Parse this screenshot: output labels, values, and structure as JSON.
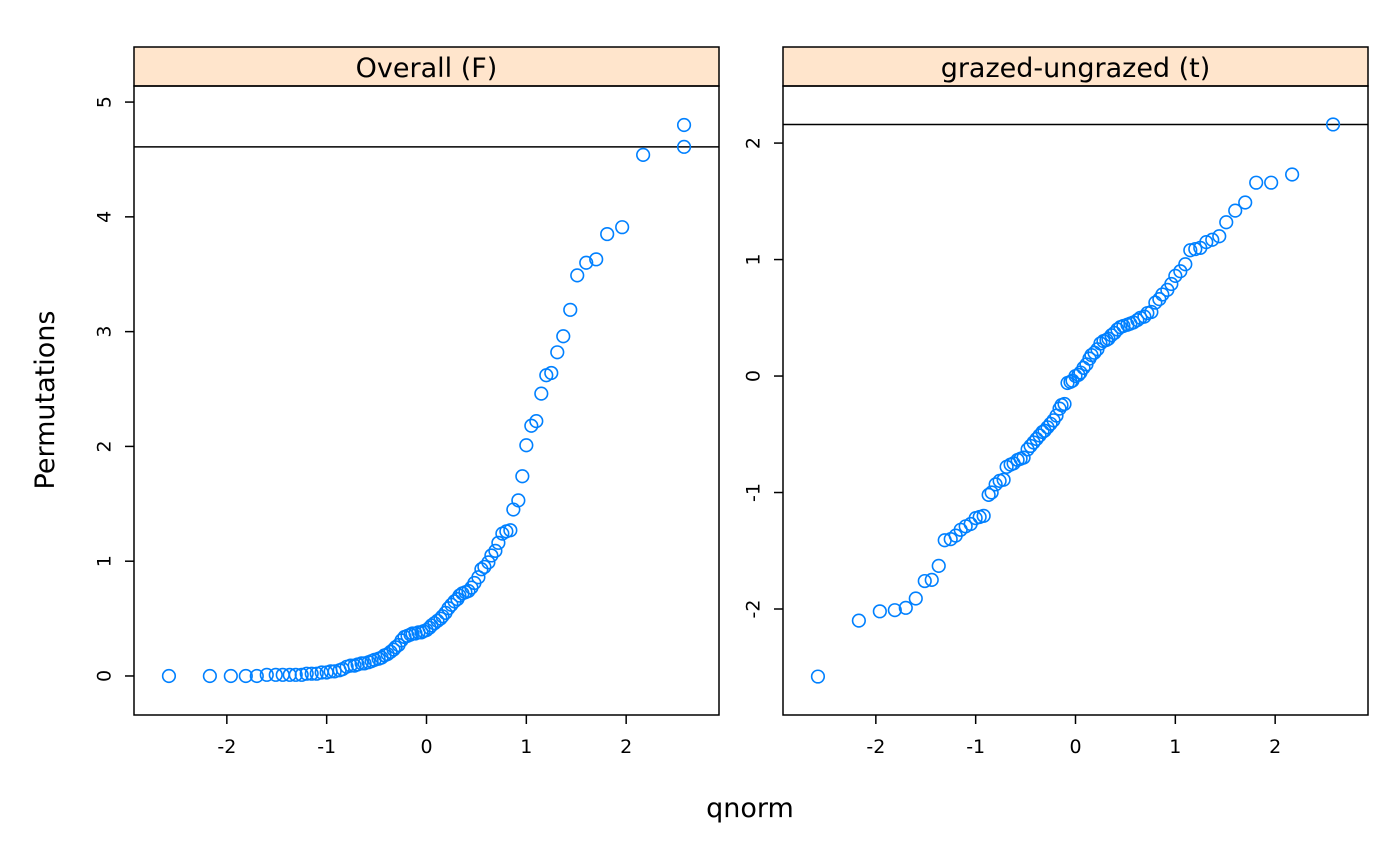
{
  "chart_data": {
    "type": "scatter",
    "xlabel": "qnorm",
    "ylabel": "Permutations",
    "panels": [
      {
        "strip": "Overall (F)",
        "xlim": [
          -2.93,
          2.93
        ],
        "ylim": [
          -0.34,
          5.14
        ],
        "xticks": [
          -2,
          -1,
          0,
          1,
          2
        ],
        "yticks": [
          0,
          1,
          2,
          3,
          4,
          5
        ],
        "reference_line": 4.61,
        "points": [
          [
            -2.58,
            0.0
          ],
          [
            -2.17,
            0.0
          ],
          [
            -1.96,
            0.0
          ],
          [
            -1.81,
            0.0
          ],
          [
            -1.7,
            0.0
          ],
          [
            -1.6,
            0.01
          ],
          [
            -1.51,
            0.01
          ],
          [
            -1.44,
            0.01
          ],
          [
            -1.37,
            0.01
          ],
          [
            -1.31,
            0.01
          ],
          [
            -1.25,
            0.01
          ],
          [
            -1.2,
            0.02
          ],
          [
            -1.15,
            0.02
          ],
          [
            -1.1,
            0.02
          ],
          [
            -1.05,
            0.03
          ],
          [
            -1.0,
            0.03
          ],
          [
            -0.96,
            0.04
          ],
          [
            -0.92,
            0.04
          ],
          [
            -0.87,
            0.05
          ],
          [
            -0.84,
            0.06
          ],
          [
            -0.8,
            0.08
          ],
          [
            -0.76,
            0.09
          ],
          [
            -0.72,
            0.09
          ],
          [
            -0.69,
            0.1
          ],
          [
            -0.65,
            0.11
          ],
          [
            -0.62,
            0.11
          ],
          [
            -0.58,
            0.12
          ],
          [
            -0.55,
            0.13
          ],
          [
            -0.52,
            0.14
          ],
          [
            -0.48,
            0.15
          ],
          [
            -0.45,
            0.16
          ],
          [
            -0.42,
            0.18
          ],
          [
            -0.39,
            0.19
          ],
          [
            -0.36,
            0.21
          ],
          [
            -0.33,
            0.23
          ],
          [
            -0.31,
            0.25
          ],
          [
            -0.28,
            0.27
          ],
          [
            -0.25,
            0.31
          ],
          [
            -0.22,
            0.34
          ],
          [
            -0.19,
            0.35
          ],
          [
            -0.16,
            0.36
          ],
          [
            -0.14,
            0.37
          ],
          [
            -0.11,
            0.37
          ],
          [
            -0.08,
            0.38
          ],
          [
            -0.05,
            0.38
          ],
          [
            -0.03,
            0.39
          ],
          [
            0.0,
            0.4
          ],
          [
            0.03,
            0.42
          ],
          [
            0.05,
            0.44
          ],
          [
            0.08,
            0.46
          ],
          [
            0.11,
            0.48
          ],
          [
            0.14,
            0.5
          ],
          [
            0.16,
            0.52
          ],
          [
            0.19,
            0.55
          ],
          [
            0.22,
            0.59
          ],
          [
            0.25,
            0.62
          ],
          [
            0.28,
            0.65
          ],
          [
            0.31,
            0.67
          ],
          [
            0.33,
            0.7
          ],
          [
            0.36,
            0.72
          ],
          [
            0.39,
            0.73
          ],
          [
            0.42,
            0.74
          ],
          [
            0.45,
            0.77
          ],
          [
            0.48,
            0.81
          ],
          [
            0.52,
            0.86
          ],
          [
            0.55,
            0.93
          ],
          [
            0.58,
            0.95
          ],
          [
            0.62,
            0.99
          ],
          [
            0.65,
            1.05
          ],
          [
            0.69,
            1.09
          ],
          [
            0.72,
            1.16
          ],
          [
            0.76,
            1.24
          ],
          [
            0.8,
            1.26
          ],
          [
            0.84,
            1.27
          ],
          [
            0.87,
            1.45
          ],
          [
            0.92,
            1.53
          ],
          [
            0.96,
            1.74
          ],
          [
            1.0,
            2.01
          ],
          [
            1.05,
            2.18
          ],
          [
            1.1,
            2.22
          ],
          [
            1.15,
            2.46
          ],
          [
            1.2,
            2.62
          ],
          [
            1.25,
            2.64
          ],
          [
            1.31,
            2.82
          ],
          [
            1.37,
            2.96
          ],
          [
            1.44,
            3.19
          ],
          [
            1.51,
            3.49
          ],
          [
            1.6,
            3.6
          ],
          [
            1.7,
            3.63
          ],
          [
            1.81,
            3.85
          ],
          [
            1.96,
            3.91
          ],
          [
            2.17,
            4.54
          ],
          [
            2.58,
            4.61
          ],
          [
            2.58,
            4.8
          ]
        ]
      },
      {
        "strip": "grazed-ungrazed (t)",
        "xlim": [
          -2.93,
          2.93
        ],
        "ylim": [
          -2.91,
          2.49
        ],
        "xticks": [
          -2,
          -1,
          0,
          1,
          2
        ],
        "yticks": [
          -2,
          -1,
          0,
          1,
          2
        ],
        "reference_line": 2.16,
        "points": [
          [
            -2.58,
            -2.58
          ],
          [
            -2.17,
            -2.1
          ],
          [
            -1.96,
            -2.02
          ],
          [
            -1.81,
            -2.01
          ],
          [
            -1.7,
            -1.99
          ],
          [
            -1.6,
            -1.91
          ],
          [
            -1.51,
            -1.76
          ],
          [
            -1.44,
            -1.75
          ],
          [
            -1.37,
            -1.63
          ],
          [
            -1.31,
            -1.41
          ],
          [
            -1.25,
            -1.4
          ],
          [
            -1.2,
            -1.37
          ],
          [
            -1.15,
            -1.32
          ],
          [
            -1.1,
            -1.29
          ],
          [
            -1.05,
            -1.27
          ],
          [
            -1.0,
            -1.22
          ],
          [
            -0.96,
            -1.21
          ],
          [
            -0.92,
            -1.2
          ],
          [
            -0.87,
            -1.02
          ],
          [
            -0.84,
            -1.0
          ],
          [
            -0.8,
            -0.93
          ],
          [
            -0.76,
            -0.9
          ],
          [
            -0.72,
            -0.89
          ],
          [
            -0.69,
            -0.78
          ],
          [
            -0.65,
            -0.76
          ],
          [
            -0.62,
            -0.75
          ],
          [
            -0.58,
            -0.72
          ],
          [
            -0.55,
            -0.71
          ],
          [
            -0.52,
            -0.7
          ],
          [
            -0.48,
            -0.63
          ],
          [
            -0.45,
            -0.6
          ],
          [
            -0.42,
            -0.57
          ],
          [
            -0.39,
            -0.54
          ],
          [
            -0.36,
            -0.51
          ],
          [
            -0.33,
            -0.48
          ],
          [
            -0.31,
            -0.47
          ],
          [
            -0.28,
            -0.44
          ],
          [
            -0.25,
            -0.41
          ],
          [
            -0.22,
            -0.38
          ],
          [
            -0.19,
            -0.34
          ],
          [
            -0.16,
            -0.28
          ],
          [
            -0.14,
            -0.25
          ],
          [
            -0.11,
            -0.24
          ],
          [
            -0.08,
            -0.06
          ],
          [
            -0.05,
            -0.05
          ],
          [
            -0.03,
            -0.04
          ],
          [
            0.0,
            0.0
          ],
          [
            0.03,
            0.01
          ],
          [
            0.05,
            0.03
          ],
          [
            0.08,
            0.07
          ],
          [
            0.11,
            0.1
          ],
          [
            0.14,
            0.15
          ],
          [
            0.16,
            0.18
          ],
          [
            0.19,
            0.2
          ],
          [
            0.22,
            0.23
          ],
          [
            0.25,
            0.28
          ],
          [
            0.28,
            0.3
          ],
          [
            0.31,
            0.31
          ],
          [
            0.33,
            0.32
          ],
          [
            0.36,
            0.35
          ],
          [
            0.39,
            0.37
          ],
          [
            0.42,
            0.4
          ],
          [
            0.45,
            0.42
          ],
          [
            0.48,
            0.43
          ],
          [
            0.52,
            0.44
          ],
          [
            0.55,
            0.45
          ],
          [
            0.58,
            0.46
          ],
          [
            0.62,
            0.48
          ],
          [
            0.65,
            0.5
          ],
          [
            0.69,
            0.51
          ],
          [
            0.72,
            0.54
          ],
          [
            0.76,
            0.55
          ],
          [
            0.8,
            0.63
          ],
          [
            0.84,
            0.66
          ],
          [
            0.87,
            0.7
          ],
          [
            0.92,
            0.74
          ],
          [
            0.96,
            0.79
          ],
          [
            1.0,
            0.86
          ],
          [
            1.05,
            0.9
          ],
          [
            1.1,
            0.96
          ],
          [
            1.15,
            1.08
          ],
          [
            1.2,
            1.09
          ],
          [
            1.25,
            1.1
          ],
          [
            1.31,
            1.15
          ],
          [
            1.37,
            1.17
          ],
          [
            1.44,
            1.2
          ],
          [
            1.51,
            1.32
          ],
          [
            1.6,
            1.42
          ],
          [
            1.7,
            1.49
          ],
          [
            1.81,
            1.66
          ],
          [
            1.96,
            1.66
          ],
          [
            2.17,
            1.73
          ],
          [
            2.58,
            2.16
          ]
        ]
      }
    ]
  },
  "colors": {
    "strip_bg": "#ffe5cc",
    "point": "#0080ff",
    "axis": "#000000"
  }
}
